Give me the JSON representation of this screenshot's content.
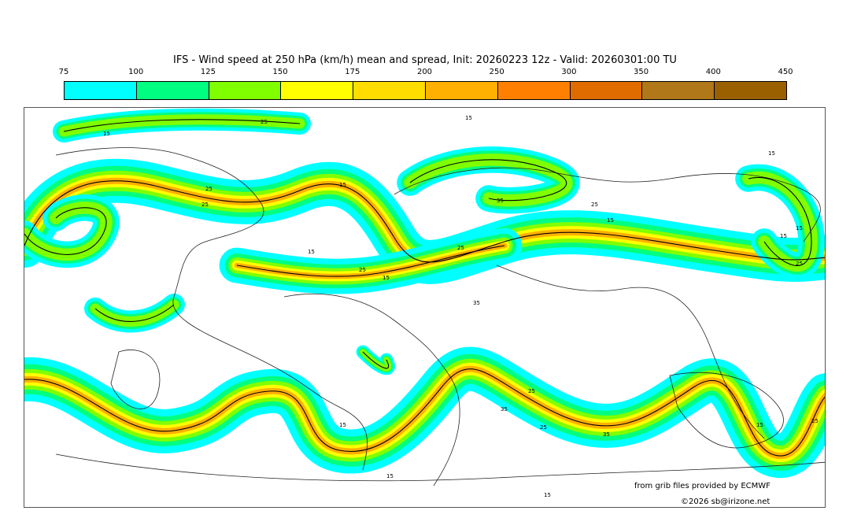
{
  "title": "IFS - Wind speed at 250 hPa (km/h) mean and spread, Init: 20260223 12z - Valid: 20260301:00 TU",
  "colorbar": {
    "ticks": [
      "75",
      "100",
      "125",
      "150",
      "175",
      "200",
      "250",
      "300",
      "350",
      "400",
      "450"
    ],
    "colors": [
      "#00ffff",
      "#00ff80",
      "#80ff00",
      "#ffff00",
      "#ffdd00",
      "#ffb000",
      "#ff8000",
      "#e06c00",
      "#b07818",
      "#9a6000"
    ]
  },
  "contour_labels": [
    "15",
    "25",
    "15",
    "25",
    "25",
    "15",
    "35",
    "25",
    "15",
    "25",
    "15",
    "15",
    "25",
    "15",
    "15",
    "25",
    "15",
    "35",
    "25",
    "35",
    "25",
    "35",
    "15",
    "25",
    "15",
    "15",
    "15"
  ],
  "credits": {
    "source": "from grib files provided by ECMWF",
    "copyright": "©2026 sb@irizone.net"
  }
}
